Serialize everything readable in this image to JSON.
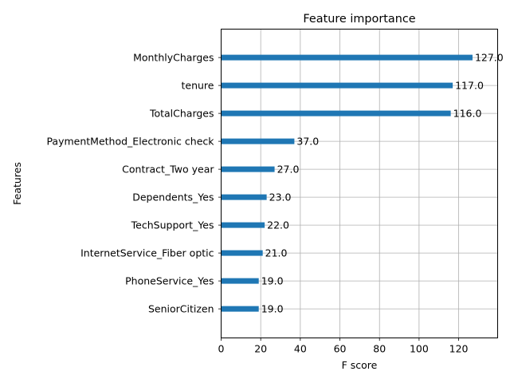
{
  "chart_data": {
    "type": "bar",
    "orientation": "horizontal",
    "title": "Feature importance",
    "xlabel": "F score",
    "ylabel": "Features",
    "xlim": [
      0,
      139.7
    ],
    "xticks": [
      0,
      20,
      40,
      60,
      80,
      100,
      120
    ],
    "grid": true,
    "bar_color": "#1f77b4",
    "categories": [
      "MonthlyCharges",
      "tenure",
      "TotalCharges",
      "PaymentMethod_Electronic check",
      "Contract_Two year",
      "Dependents_Yes",
      "TechSupport_Yes",
      "InternetService_Fiber optic",
      "PhoneService_Yes",
      "SeniorCitizen"
    ],
    "values": [
      127.0,
      117.0,
      116.0,
      37.0,
      27.0,
      23.0,
      22.0,
      21.0,
      19.0,
      19.0
    ],
    "value_labels": [
      "127.0",
      "117.0",
      "116.0",
      "37.0",
      "27.0",
      "23.0",
      "22.0",
      "21.0",
      "19.0",
      "19.0"
    ]
  }
}
